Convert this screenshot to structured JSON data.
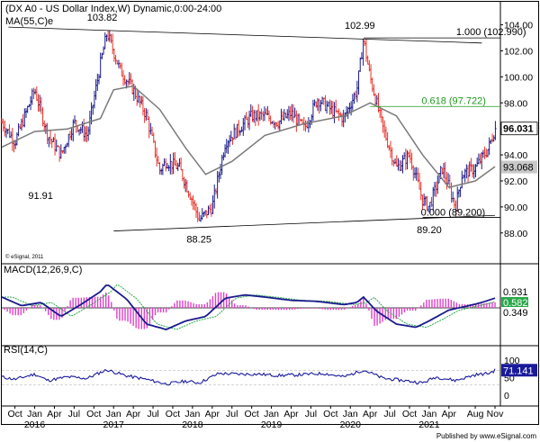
{
  "colors": {
    "up_bar": "#1a1a8c",
    "down_bar": "#e8332a",
    "ma": "#7a7a7a",
    "macd_line": "#1a1a8c",
    "macd_signal": "#2aa84a",
    "macd_hist": "#e040c8",
    "rsi": "#1a1a9c",
    "fib_618": "#1f9a1f",
    "frame": "#000000"
  },
  "chart_data": [
    {
      "type": "line",
      "title": "(DX A0 - US Dollar Index,W) Dynamic,0:00-24:00",
      "indicator_label": "MA(55,C)e",
      "series": [
        {
          "name": "price",
          "x": [
            "2015-08",
            "2015-10",
            "2016-01",
            "2016-03",
            "2016-05",
            "2016-07",
            "2016-09",
            "2016-11",
            "2016-12",
            "2017-02",
            "2017-04",
            "2017-06",
            "2017-08",
            "2017-09",
            "2017-11",
            "2018-01",
            "2018-02",
            "2018-04",
            "2018-06",
            "2018-08",
            "2018-10",
            "2018-12",
            "2019-02",
            "2019-04",
            "2019-06",
            "2019-08",
            "2019-10",
            "2019-12",
            "2020-02",
            "2020-03",
            "2020-04",
            "2020-06",
            "2020-08",
            "2020-10",
            "2020-12",
            "2021-01",
            "2021-03",
            "2021-05",
            "2021-06",
            "2021-08",
            "2021-10",
            "2021-11"
          ],
          "values": [
            96.5,
            95.0,
            99.0,
            95.5,
            94.0,
            96.5,
            95.5,
            101.0,
            103.4,
            100.5,
            99.0,
            97.0,
            92.8,
            93.5,
            93.0,
            90.5,
            89.0,
            90.0,
            95.0,
            96.0,
            97.0,
            97.0,
            96.5,
            97.2,
            96.0,
            98.3,
            97.5,
            96.8,
            99.0,
            102.9,
            100.0,
            96.0,
            93.0,
            94.0,
            90.5,
            90.0,
            93.0,
            90.0,
            92.5,
            93.0,
            94.5,
            96.0
          ]
        },
        {
          "name": "MA(55,C)e",
          "x": [
            "2015-08",
            "2016-01",
            "2016-06",
            "2016-11",
            "2017-01",
            "2017-04",
            "2017-08",
            "2017-12",
            "2018-03",
            "2018-07",
            "2018-12",
            "2019-06",
            "2019-12",
            "2020-04",
            "2020-08",
            "2020-12",
            "2021-04",
            "2021-08",
            "2021-11"
          ],
          "values": [
            94.6,
            95.8,
            96.0,
            96.8,
            99.0,
            99.3,
            97.5,
            94.5,
            92.5,
            93.5,
            95.5,
            96.4,
            97.0,
            98.0,
            97.0,
            94.0,
            91.5,
            92.0,
            93.1
          ]
        }
      ],
      "annotations": [
        "103.82",
        "102.99",
        "91.91",
        "88.25",
        "89.20",
        "1.000 (102.990)",
        "0.618 (97.722)",
        "0.000 (89.200)"
      ],
      "last_price_label": "96.031",
      "ma_last_label": "93.068",
      "yticks": [
        "104.00",
        "102.00",
        "100.00",
        "98.00",
        "96.00",
        "94.00",
        "92.00",
        "90.00",
        "88.00"
      ],
      "ylim": [
        86.6,
        104.8
      ],
      "credit": "© eSignal, 2011"
    },
    {
      "type": "line",
      "title": "MACD(12,26,9,C)",
      "series": [
        {
          "name": "MACD",
          "x": [
            "2015-08",
            "2015-11",
            "2016-02",
            "2016-05",
            "2016-08",
            "2016-11",
            "2016-12",
            "2017-03",
            "2017-06",
            "2017-09",
            "2017-12",
            "2018-03",
            "2018-06",
            "2018-09",
            "2018-12",
            "2019-04",
            "2019-08",
            "2019-12",
            "2020-02",
            "2020-03",
            "2020-05",
            "2020-08",
            "2020-11",
            "2021-01",
            "2021-04",
            "2021-07",
            "2021-09",
            "2021-11"
          ],
          "values": [
            1.0,
            0.2,
            0.5,
            -0.8,
            0.3,
            1.5,
            2.2,
            0.8,
            -1.5,
            -2.0,
            -1.2,
            -0.8,
            0.9,
            1.2,
            1.0,
            0.7,
            0.6,
            0.3,
            0.5,
            1.0,
            -0.3,
            -1.5,
            -1.8,
            -1.2,
            -0.2,
            0.2,
            0.5,
            0.9
          ]
        }
      ],
      "value_labels": [
        "0.931",
        "0.582",
        "0.349"
      ],
      "hline": 0
    },
    {
      "type": "line",
      "title": "RSI(14,C)",
      "series": [
        {
          "name": "RSI",
          "x": [
            "2015-08",
            "2015-10",
            "2016-01",
            "2016-03",
            "2016-06",
            "2016-09",
            "2016-11",
            "2016-12",
            "2017-03",
            "2017-06",
            "2017-09",
            "2017-12",
            "2018-02",
            "2018-05",
            "2018-08",
            "2018-11",
            "2019-02",
            "2019-05",
            "2019-09",
            "2019-12",
            "2020-03",
            "2020-06",
            "2020-09",
            "2020-12",
            "2021-02",
            "2021-05",
            "2021-08",
            "2021-10",
            "2021-11"
          ],
          "values": [
            52,
            45,
            60,
            42,
            52,
            48,
            65,
            72,
            55,
            45,
            32,
            40,
            35,
            62,
            60,
            60,
            56,
            58,
            62,
            52,
            72,
            48,
            42,
            35,
            52,
            42,
            58,
            62,
            71.1
          ]
        }
      ],
      "yticks": [
        "100",
        "50",
        "0"
      ],
      "ylim": [
        0,
        100
      ],
      "last_label": "71.141"
    }
  ],
  "x_axis": {
    "months": [
      {
        "label": "Oct",
        "x": "2015-10"
      },
      {
        "label": "Jan",
        "x": "2016-01"
      },
      {
        "label": "Apr",
        "x": "2016-04"
      },
      {
        "label": "Jul",
        "x": "2016-07"
      },
      {
        "label": "Oct",
        "x": "2016-10"
      },
      {
        "label": "Jan",
        "x": "2017-01"
      },
      {
        "label": "Apr",
        "x": "2017-04"
      },
      {
        "label": "Jul",
        "x": "2017-07"
      },
      {
        "label": "Oct",
        "x": "2017-10"
      },
      {
        "label": "Jan",
        "x": "2018-01"
      },
      {
        "label": "Apr",
        "x": "2018-04"
      },
      {
        "label": "Jul",
        "x": "2018-07"
      },
      {
        "label": "Oct",
        "x": "2018-10"
      },
      {
        "label": "Jan",
        "x": "2019-01"
      },
      {
        "label": "Apr",
        "x": "2019-04"
      },
      {
        "label": "Jul",
        "x": "2019-07"
      },
      {
        "label": "Oct",
        "x": "2019-10"
      },
      {
        "label": "Jan",
        "x": "2020-01"
      },
      {
        "label": "Apr",
        "x": "2020-04"
      },
      {
        "label": "Jul",
        "x": "2020-07"
      },
      {
        "label": "Oct",
        "x": "2020-10"
      },
      {
        "label": "Jan",
        "x": "2021-01"
      },
      {
        "label": "Apr",
        "x": "2021-04"
      },
      {
        "label": "Aug",
        "x": "2021-08"
      },
      {
        "label": "Nov",
        "x": "2021-11"
      }
    ],
    "years": [
      {
        "label": "2016",
        "x": "2016-01"
      },
      {
        "label": "2017",
        "x": "2017-01"
      },
      {
        "label": "2018",
        "x": "2018-01"
      },
      {
        "label": "2019",
        "x": "2019-01"
      },
      {
        "label": "2020",
        "x": "2020-01"
      },
      {
        "label": "2021",
        "x": "2021-01"
      }
    ]
  },
  "footer": "Published by www.eSignal.com"
}
